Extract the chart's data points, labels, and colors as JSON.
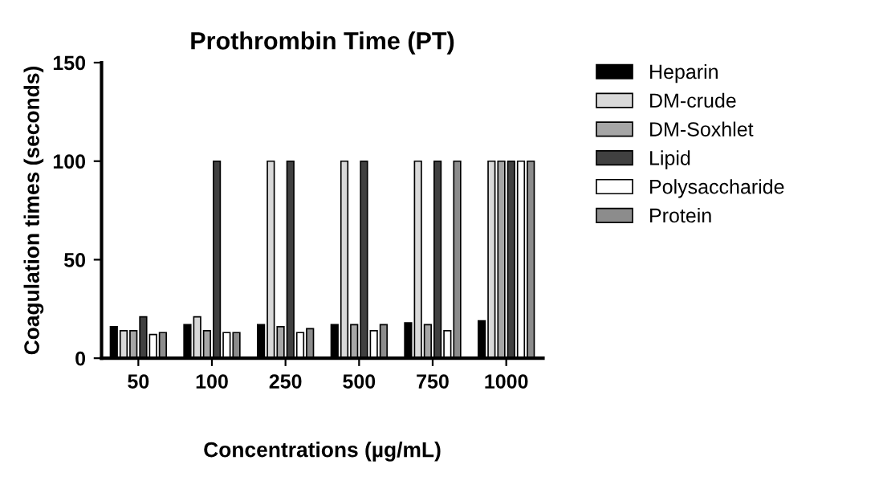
{
  "chart_data": {
    "type": "bar",
    "title": "Prothrombin Time (PT)",
    "xlabel": "Concentrations (µg/mL)",
    "ylabel": "Coagulation times (seconds)",
    "categories": [
      "50",
      "100",
      "250",
      "500",
      "750",
      "1000"
    ],
    "series": [
      {
        "name": "Heparin",
        "color": "#000000",
        "values": [
          16,
          17,
          17,
          17,
          18,
          19
        ]
      },
      {
        "name": "DM-crude",
        "color": "#d9d9d9",
        "values": [
          14,
          21,
          100,
          100,
          100,
          100
        ]
      },
      {
        "name": "DM-Soxhlet",
        "color": "#a6a6a6",
        "values": [
          14,
          14,
          16,
          17,
          17,
          100
        ]
      },
      {
        "name": "Lipid",
        "color": "#404040",
        "values": [
          21,
          100,
          100,
          100,
          100,
          100
        ]
      },
      {
        "name": "Polysaccharide",
        "color": "#ffffff",
        "values": [
          12,
          13,
          13,
          14,
          14,
          100
        ]
      },
      {
        "name": "Protein",
        "color": "#8c8c8c",
        "values": [
          13,
          13,
          15,
          17,
          100,
          100
        ]
      }
    ],
    "ylim": [
      0,
      150
    ],
    "yticks": [
      0,
      50,
      100,
      150
    ],
    "grid": false,
    "legend": "right"
  }
}
